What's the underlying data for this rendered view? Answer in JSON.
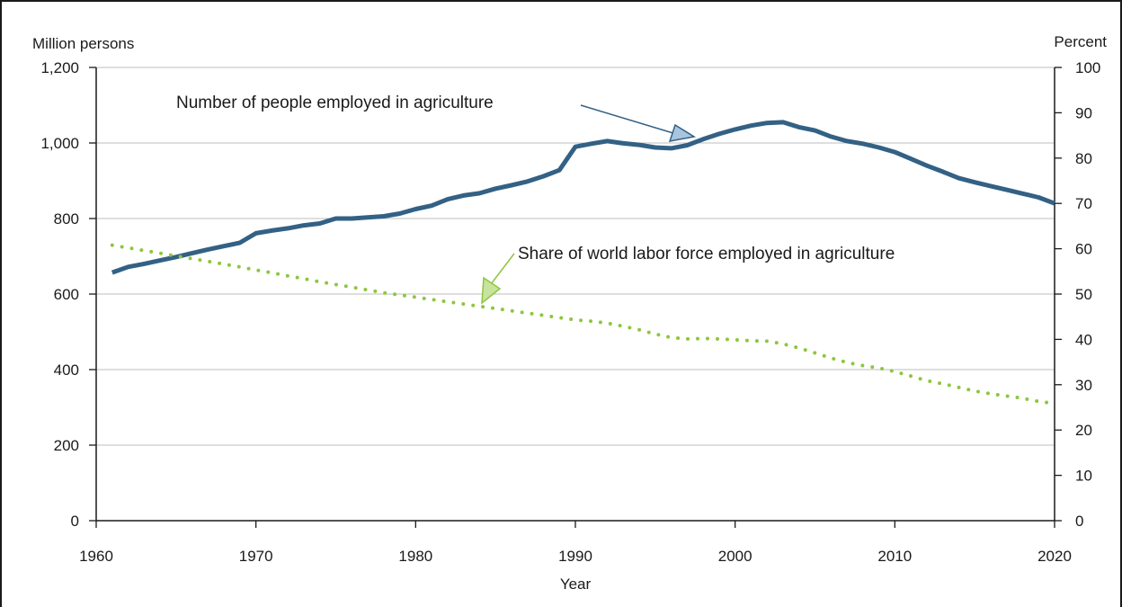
{
  "chart_data": {
    "type": "line",
    "title": "",
    "xlabel": "Year",
    "ylabel_left": "Million persons",
    "ylabel_right": "Percent",
    "xlim": [
      1960,
      2020
    ],
    "ylim_left": [
      0,
      1200
    ],
    "ylim_right": [
      0,
      100
    ],
    "x_ticks": [
      "1960",
      "1970",
      "1980",
      "1990",
      "2000",
      "2010",
      "2020"
    ],
    "y_ticks_left": [
      "0",
      "200",
      "400",
      "600",
      "800",
      "1,000",
      "1,200"
    ],
    "y_ticks_right": [
      "0",
      "10",
      "20",
      "30",
      "40",
      "50",
      "60",
      "70",
      "80",
      "90",
      "100"
    ],
    "grid": true,
    "legend": "none",
    "annotations": {
      "employed": "Number of people employed in agriculture",
      "share": "Share of world labor force employed in agriculture"
    },
    "colors": {
      "employed": "#336185",
      "share": "#8dc63f",
      "grid": "#bdbdbd",
      "axis": "#1a1a1a"
    },
    "series": [
      {
        "axis": "left",
        "style": "solid",
        "x": [
          1961,
          1962,
          1963,
          1964,
          1965,
          1966,
          1967,
          1968,
          1969,
          1970,
          1971,
          1972,
          1973,
          1974,
          1975,
          1976,
          1977,
          1978,
          1979,
          1980,
          1981,
          1982,
          1983,
          1984,
          1985,
          1986,
          1987,
          1988,
          1989,
          1990,
          1991,
          1992,
          1993,
          1994,
          1995,
          1996,
          1997,
          1998,
          1999,
          2000,
          2001,
          2002,
          2003,
          2004,
          2005,
          2006,
          2007,
          2008,
          2009,
          2010,
          2011,
          2012,
          2013,
          2014,
          2015,
          2016,
          2017,
          2018,
          2019,
          2020
        ],
        "values": [
          657,
          672,
          680,
          689,
          698,
          708,
          718,
          727,
          736,
          761,
          768,
          774,
          782,
          787,
          800,
          800,
          803,
          806,
          813,
          825,
          834,
          851,
          861,
          867,
          879,
          888,
          898,
          912,
          928,
          990,
          998,
          1005,
          999,
          995,
          988,
          986,
          994,
          1010,
          1024,
          1036,
          1046,
          1053,
          1055,
          1042,
          1033,
          1017,
          1005,
          998,
          988,
          976,
          958,
          940,
          924,
          907,
          896,
          886,
          876,
          866,
          856,
          840
        ]
      },
      {
        "axis": "right",
        "style": "dotted",
        "x": [
          1961,
          1962,
          1963,
          1964,
          1965,
          1966,
          1967,
          1968,
          1969,
          1970,
          1971,
          1972,
          1973,
          1974,
          1975,
          1976,
          1977,
          1978,
          1979,
          1980,
          1981,
          1982,
          1983,
          1984,
          1985,
          1986,
          1987,
          1988,
          1989,
          1990,
          1991,
          1992,
          1993,
          1994,
          1995,
          1996,
          1997,
          1998,
          1999,
          2000,
          2001,
          2002,
          2003,
          2004,
          2005,
          2006,
          2007,
          2008,
          2009,
          2010,
          2011,
          2012,
          2013,
          2014,
          2015,
          2016,
          2017,
          2018,
          2019,
          2020
        ],
        "values": [
          60.8,
          60.2,
          59.6,
          59.0,
          58.4,
          57.8,
          57.2,
          56.6,
          56.0,
          55.3,
          54.7,
          54.0,
          53.4,
          52.7,
          52.1,
          51.5,
          50.9,
          50.3,
          49.8,
          49.3,
          48.8,
          48.3,
          47.8,
          47.3,
          46.8,
          46.3,
          45.8,
          45.3,
          44.8,
          44.3,
          44.0,
          43.6,
          42.9,
          42.1,
          41.2,
          40.4,
          40.1,
          40.2,
          40.1,
          39.9,
          39.7,
          39.6,
          39.0,
          38.1,
          37.0,
          35.9,
          34.9,
          34.2,
          33.7,
          32.9,
          31.9,
          30.9,
          30.2,
          29.4,
          28.6,
          28.0,
          27.5,
          27.0,
          26.3,
          25.9
        ]
      }
    ]
  }
}
